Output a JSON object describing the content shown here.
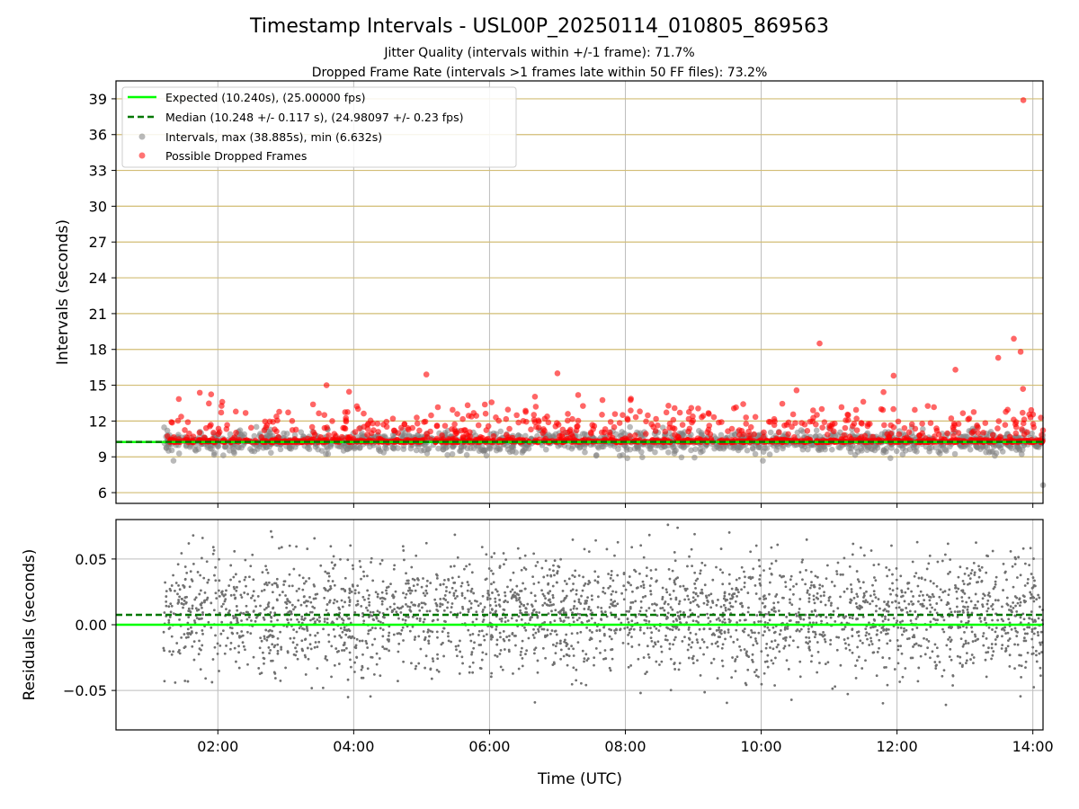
{
  "chart_data": [
    {
      "type": "scatter",
      "title": "Timestamp Intervals - USL00P_20250114_010805_869563",
      "subtitle_lines": [
        "Jitter Quality (intervals within +/-1 frame): 71.7%",
        "Dropped Frame Rate (intervals >1 frames late within 50 FF files): 73.2%"
      ],
      "xlabel": "",
      "ylabel": "Intervals (seconds)",
      "xlim_hours": [
        0.5,
        14.15
      ],
      "ylim": [
        5.1,
        40.5
      ],
      "yticks": [
        6,
        9,
        12,
        15,
        18,
        21,
        24,
        27,
        30,
        33,
        36,
        39
      ],
      "grid": true,
      "legend_position": "top-left",
      "colors": {
        "expected": "#00ff00",
        "median": "#007700",
        "intervals": "#808080",
        "dropped": "#ff0000",
        "hgrid": "#d2bd74",
        "vgrid": "#bdbdbd"
      },
      "expected_value": 10.24,
      "median_value": 10.248,
      "legend": [
        "Expected (10.240s), (25.00000 fps)",
        "Median (10.248 +/- 0.117 s), (24.98097 +/- 0.23 fps)",
        "Intervals, max (38.885s), min (6.632s)",
        "Possible Dropped Frames"
      ],
      "max_interval": 38.885,
      "min_interval": 6.632,
      "series_summary": {
        "time_range_hours": [
          1.2,
          14.15
        ],
        "intervals_typical_range": [
          8.6,
          11.5
        ],
        "dropped_typical_range": [
          10.2,
          16.0
        ]
      },
      "notable_points": [
        {
          "x_hours": 13.86,
          "y": 38.885
        },
        {
          "x_hours": 10.86,
          "y": 18.5
        },
        {
          "x_hours": 13.72,
          "y": 18.9
        },
        {
          "x_hours": 13.82,
          "y": 17.8
        },
        {
          "x_hours": 13.49,
          "y": 17.3
        },
        {
          "x_hours": 12.86,
          "y": 16.3
        },
        {
          "x_hours": 11.95,
          "y": 15.8
        },
        {
          "x_hours": 5.07,
          "y": 15.9
        },
        {
          "x_hours": 7.0,
          "y": 16.0
        },
        {
          "x_hours": 3.6,
          "y": 15.0
        },
        {
          "x_hours": 14.15,
          "y": 6.632
        }
      ]
    },
    {
      "type": "scatter",
      "xlabel": "Time (UTC)",
      "ylabel": "Residuals (seconds)",
      "xlim_hours": [
        0.5,
        14.15
      ],
      "ylim": [
        -0.08,
        0.08
      ],
      "yticks": [
        -0.05,
        0.0,
        0.05
      ],
      "ytick_labels": [
        "−0.05",
        "0.00",
        "0.05"
      ],
      "xticks_hours": [
        2,
        4,
        6,
        8,
        10,
        12,
        14
      ],
      "xtick_labels": [
        "02:00",
        "04:00",
        "06:00",
        "08:00",
        "10:00",
        "12:00",
        "14:00"
      ],
      "grid": true,
      "expected_line": 0.0,
      "median_line": 0.0075,
      "series_summary": {
        "time_range_hours": [
          1.2,
          14.15
        ],
        "core_spread": [
          -0.04,
          0.04
        ]
      }
    }
  ]
}
